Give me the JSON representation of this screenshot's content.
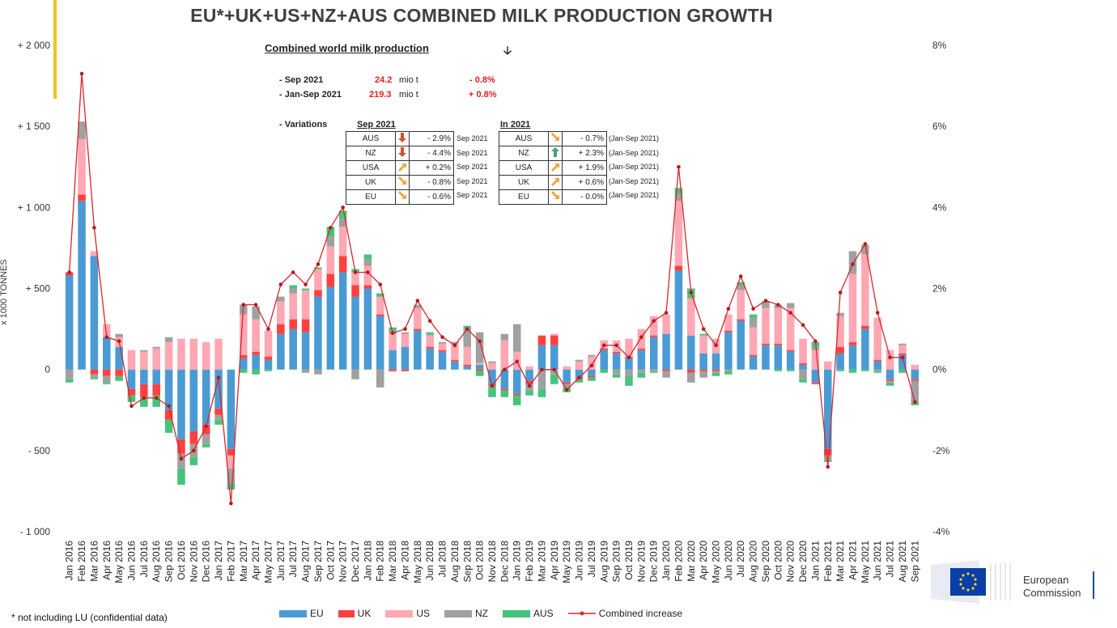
{
  "title": "EU*+UK+US+NZ+AUS COMBINED MILK PRODUCTION GROWTH",
  "footnote": "* not including LU (confidential data)",
  "y_axis_title": "x 1000 TONNES",
  "summary": {
    "heading": "Combined world milk production",
    "rows": [
      {
        "period": "- Sep 2021",
        "value": "24.2",
        "unit": "mio t",
        "change": "- 0.8%"
      },
      {
        "period": "- Jan-Sep 2021",
        "value": "219.3",
        "unit": "mio t",
        "change": "+ 0.8%"
      }
    ],
    "variations_label": "- Variations",
    "sep_head": "Sep 2021",
    "in_head": "In 2021",
    "sep_rows": [
      {
        "region": "AUS",
        "trend": "down-strong",
        "pct": "- 2.9%",
        "period": "Sep 2021"
      },
      {
        "region": "NZ",
        "trend": "down-strong",
        "pct": "- 4.4%",
        "period": "Sep 2021"
      },
      {
        "region": "USA",
        "trend": "up-slight",
        "pct": "+ 0.2%",
        "period": "Sep 2021"
      },
      {
        "region": "UK",
        "trend": "down-slight",
        "pct": "- 0.8%",
        "period": "Sep 2021"
      },
      {
        "region": "EU",
        "trend": "down-slight",
        "pct": "- 0.6%",
        "period": "Sep 2021"
      }
    ],
    "in_rows": [
      {
        "region": "AUS",
        "trend": "down-slight",
        "pct": "- 0.7%",
        "period": "(Jan-Sep 2021)"
      },
      {
        "region": "NZ",
        "trend": "up-strong",
        "pct": "+ 2.3%",
        "period": "(Jan-Sep 2021)"
      },
      {
        "region": "USA",
        "trend": "up-slight",
        "pct": "+ 1.9%",
        "period": "(Jan-Sep 2021)"
      },
      {
        "region": "UK",
        "trend": "up-slight",
        "pct": "+ 0.6%",
        "period": "(Jan-Sep 2021)"
      },
      {
        "region": "EU",
        "trend": "down-slight",
        "pct": "- 0.0%",
        "period": "(Jan-Sep 2021)"
      }
    ]
  },
  "logo": {
    "line1": "European",
    "line2": "Commission"
  },
  "chart_data": {
    "type": "bar",
    "stacked": true,
    "categories": [
      "Jan 2016",
      "Feb 2016",
      "Mar 2016",
      "Apr 2016",
      "May 2016",
      "Jun 2016",
      "Jul 2016",
      "Aug 2016",
      "Sep 2016",
      "Oct 2016",
      "Nov 2016",
      "Dec 2016",
      "Jan 2017",
      "Feb 2017",
      "Mar 2017",
      "Apr 2017",
      "May 2017",
      "Jun 2017",
      "Jul 2017",
      "Aug 2017",
      "Sep 2017",
      "Oct 2017",
      "Nov 2017",
      "Dec 2017",
      "Jan 2018",
      "Feb 2018",
      "Mar 2018",
      "Apr 2018",
      "May 2018",
      "Jun 2018",
      "Jul 2018",
      "Aug 2018",
      "Sep 2018",
      "Oct 2018",
      "Nov 2018",
      "Dec 2018",
      "Jan 2019",
      "Feb 2019",
      "Mar 2019",
      "Apr 2019",
      "May 2019",
      "Jun 2019",
      "Jul 2019",
      "Aug 2019",
      "Sep 2019",
      "Oct 2019",
      "Nov 2019",
      "Dec 2019",
      "Jan 2020",
      "Feb 2020",
      "Mar 2020",
      "Apr 2020",
      "May 2020",
      "Jun 2020",
      "Jul 2020",
      "Aug 2020",
      "Sep 2020",
      "Oct 2020",
      "Nov 2020",
      "Dec 2020",
      "Jan 2021",
      "Feb 2021",
      "Mar 2021",
      "Apr 2021",
      "May 2021",
      "Jun 2021",
      "Jul 2021",
      "Aug 2021",
      "Sep 2021"
    ],
    "series": [
      {
        "name": "EU",
        "color": "#4a9bd4",
        "values": [
          580,
          1040,
          700,
          200,
          140,
          -120,
          -90,
          -90,
          -250,
          -430,
          -380,
          -340,
          -240,
          -490,
          70,
          90,
          60,
          220,
          250,
          230,
          450,
          510,
          600,
          450,
          500,
          330,
          120,
          140,
          240,
          130,
          110,
          50,
          20,
          30,
          -90,
          -120,
          -150,
          -70,
          150,
          150,
          -80,
          -50,
          -40,
          120,
          100,
          70,
          120,
          200,
          220,
          610,
          210,
          100,
          100,
          230,
          300,
          80,
          150,
          150,
          110,
          30,
          -80,
          -490,
          100,
          150,
          250,
          50,
          -60,
          90,
          -60
        ]
      },
      {
        "name": "UK",
        "color": "#ff4040",
        "values": [
          20,
          40,
          -30,
          -40,
          -40,
          -40,
          -80,
          -70,
          -60,
          -90,
          -80,
          -60,
          -40,
          -40,
          20,
          20,
          20,
          60,
          60,
          80,
          40,
          80,
          100,
          70,
          20,
          10,
          -10,
          -10,
          10,
          10,
          10,
          10,
          10,
          -10,
          -10,
          -10,
          -10,
          -20,
          60,
          60,
          -10,
          -10,
          -10,
          10,
          10,
          10,
          10,
          10,
          -10,
          30,
          -20,
          -10,
          -10,
          10,
          10,
          10,
          10,
          10,
          10,
          10,
          -10,
          -40,
          40,
          20,
          20,
          10,
          -10,
          10,
          -10
        ]
      },
      {
        "name": "US",
        "color": "#ffa7b3",
        "values": [
          0,
          340,
          30,
          80,
          60,
          120,
          110,
          130,
          170,
          190,
          190,
          170,
          190,
          -80,
          250,
          200,
          160,
          140,
          160,
          180,
          130,
          170,
          180,
          80,
          120,
          110,
          100,
          80,
          130,
          70,
          40,
          100,
          110,
          10,
          40,
          180,
          110,
          20,
          0,
          10,
          20,
          50,
          80,
          50,
          70,
          110,
          120,
          120,
          120,
          400,
          230,
          110,
          90,
          100,
          180,
          170,
          220,
          220,
          260,
          150,
          120,
          50,
          190,
          420,
          440,
          260,
          120,
          50,
          30
        ]
      },
      {
        "name": "NZ",
        "color": "#a0a0a0",
        "values": [
          -60,
          110,
          -20,
          -40,
          20,
          0,
          10,
          10,
          30,
          -90,
          -80,
          -60,
          -30,
          -90,
          60,
          80,
          0,
          30,
          30,
          -20,
          -30,
          60,
          50,
          -60,
          40,
          -110,
          20,
          10,
          20,
          10,
          10,
          10,
          120,
          190,
          10,
          40,
          170,
          -40,
          -120,
          -30,
          -20,
          10,
          10,
          0,
          -30,
          -40,
          -20,
          -10,
          -40,
          40,
          -60,
          -40,
          -10,
          -10,
          30,
          60,
          30,
          20,
          30,
          -60,
          20,
          -30,
          20,
          140,
          60,
          -10,
          -10,
          10,
          -130
        ]
      },
      {
        "name": "AUS",
        "color": "#46c37b",
        "values": [
          -20,
          0,
          -10,
          -10,
          -30,
          -40,
          -60,
          -70,
          -80,
          -100,
          -50,
          -20,
          -30,
          -40,
          -20,
          -30,
          -10,
          0,
          20,
          10,
          10,
          60,
          50,
          20,
          30,
          20,
          20,
          0,
          0,
          10,
          0,
          0,
          10,
          -30,
          -70,
          -40,
          -60,
          -30,
          -50,
          -60,
          -30,
          -20,
          -20,
          -20,
          -20,
          -60,
          -30,
          -10,
          0,
          40,
          60,
          10,
          -20,
          -20,
          20,
          20,
          10,
          -10,
          -10,
          -20,
          30,
          -10,
          -10,
          -20,
          -10,
          -10,
          -20,
          -20,
          -20
        ]
      }
    ],
    "line": {
      "name": "Combined increase",
      "color": "#d9262c",
      "axis": "right",
      "unit": "%",
      "values": [
        2.4,
        7.3,
        3.5,
        0.8,
        0.7,
        -0.9,
        -0.7,
        -0.7,
        -0.9,
        -2.2,
        -2.0,
        -1.4,
        -0.2,
        -3.3,
        1.6,
        1.6,
        1.0,
        2.1,
        2.4,
        2.1,
        2.6,
        3.5,
        4.0,
        2.4,
        2.4,
        2.1,
        0.9,
        1.0,
        1.7,
        1.2,
        0.8,
        0.6,
        1.0,
        0.7,
        -0.4,
        0.0,
        0.2,
        -0.4,
        0.0,
        0.0,
        -0.5,
        -0.2,
        0.1,
        0.6,
        0.6,
        0.3,
        0.8,
        1.2,
        1.4,
        5.0,
        1.9,
        1.0,
        0.6,
        1.5,
        2.3,
        1.5,
        1.7,
        1.6,
        1.4,
        1.1,
        0.7,
        -2.4,
        1.9,
        2.6,
        3.1,
        1.4,
        0.3,
        0.3,
        -0.8
      ]
    },
    "y_left": {
      "range": [
        -1000,
        2000
      ],
      "ticks": [
        -1000,
        -500,
        0,
        500,
        1000,
        1500,
        2000
      ],
      "tick_labels": [
        "- 1 000",
        "- 500",
        "0",
        "+ 500",
        "+ 1 000",
        "+ 1 500",
        "+ 2 000"
      ]
    },
    "y_right": {
      "range": [
        -4,
        8
      ],
      "ticks": [
        -4,
        -2,
        0,
        2,
        4,
        6,
        8
      ],
      "tick_labels": [
        "-4%",
        "-2%",
        "0%",
        "2%",
        "4%",
        "6%",
        "8%"
      ]
    },
    "legend": {
      "position": "bottom",
      "entries": [
        "EU",
        "UK",
        "US",
        "NZ",
        "AUS",
        "Combined increase"
      ]
    },
    "grid": false
  }
}
